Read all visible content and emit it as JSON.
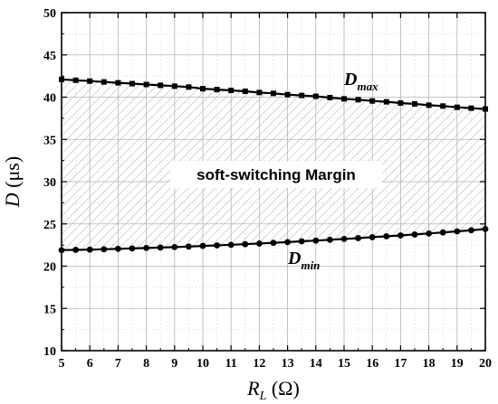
{
  "chart_data": {
    "type": "line",
    "title": "",
    "xlabel_main": "R",
    "xlabel_sub": "L",
    "xlabel_unit": " (Ω)",
    "ylabel_main": "D",
    "ylabel_unit": " (μs)",
    "xlim": [
      5,
      20
    ],
    "ylim": [
      10,
      50
    ],
    "xticks": [
      5,
      6,
      7,
      8,
      9,
      10,
      11,
      12,
      13,
      14,
      15,
      16,
      17,
      18,
      19,
      20
    ],
    "yticks": [
      10,
      15,
      20,
      25,
      30,
      35,
      40,
      45,
      50
    ],
    "grid": true,
    "series": [
      {
        "label_main": "D",
        "label_sub": "max",
        "marker": "square",
        "x": [
          5,
          5.5,
          6,
          6.5,
          7,
          7.5,
          8,
          8.5,
          9,
          9.5,
          10,
          10.5,
          11,
          11.5,
          12,
          12.5,
          13,
          13.5,
          14,
          14.5,
          15,
          15.5,
          16,
          16.5,
          17,
          17.5,
          18,
          18.5,
          19,
          19.5,
          20
        ],
        "y": [
          42.1,
          42.0,
          41.9,
          41.8,
          41.7,
          41.6,
          41.5,
          41.4,
          41.3,
          41.2,
          41.0,
          40.9,
          40.8,
          40.7,
          40.55,
          40.45,
          40.3,
          40.2,
          40.1,
          39.95,
          39.8,
          39.7,
          39.55,
          39.45,
          39.3,
          39.2,
          39.05,
          38.95,
          38.8,
          38.7,
          38.6
        ]
      },
      {
        "label_main": "D",
        "label_sub": "min",
        "marker": "circle",
        "x": [
          5,
          5.5,
          6,
          6.5,
          7,
          7.5,
          8,
          8.5,
          9,
          9.5,
          10,
          10.5,
          11,
          11.5,
          12,
          12.5,
          13,
          13.5,
          14,
          14.5,
          15,
          15.5,
          16,
          16.5,
          17,
          17.5,
          18,
          18.5,
          19,
          19.5,
          20
        ],
        "y": [
          21.9,
          21.93,
          21.96,
          22.0,
          22.05,
          22.1,
          22.15,
          22.2,
          22.26,
          22.32,
          22.4,
          22.46,
          22.53,
          22.6,
          22.68,
          22.76,
          22.85,
          22.94,
          23.03,
          23.12,
          23.22,
          23.32,
          23.43,
          23.53,
          23.64,
          23.75,
          23.87,
          23.99,
          24.12,
          24.25,
          24.4
        ]
      }
    ],
    "annotation": "soft-switching Margin"
  }
}
